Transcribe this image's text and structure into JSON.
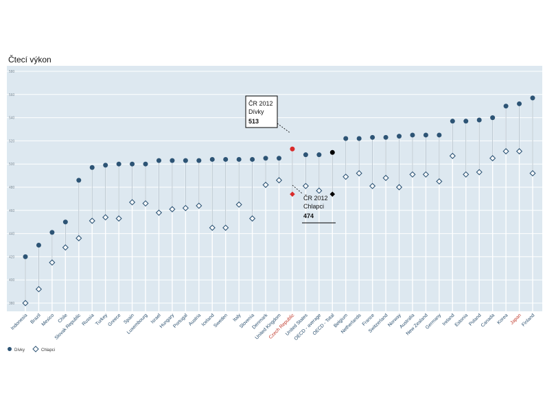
{
  "chart_data": {
    "type": "scatter",
    "title": "Čtecí výkon",
    "ylim": [
      380,
      580
    ],
    "yticks": [
      380,
      400,
      420,
      440,
      460,
      480,
      500,
      520,
      540,
      560,
      580
    ],
    "categories": [
      "Indonesia",
      "Brazil",
      "Mexico",
      "Chile",
      "Slovak Republic",
      "Russia",
      "Turkey",
      "Greece",
      "Spain",
      "Luxembourg",
      "Israel",
      "Hungary",
      "Portugal",
      "Austria",
      "Iceland",
      "Sweden",
      "Italy",
      "Slovenia",
      "Denmark",
      "United Kingdom",
      "Czech Republic",
      "United States",
      "OECD - average",
      "OECD - Total",
      "Belgium",
      "Netherlands",
      "France",
      "Switzerland",
      "Norway",
      "Australia",
      "New Zealand",
      "Germany",
      "Ireland",
      "Estonia",
      "Poland",
      "Canada",
      "Korea",
      "Japan",
      "Finland"
    ],
    "highlight_red": [
      "Czech Republic",
      "Japan"
    ],
    "highlight_black": [
      "OECD - Total"
    ],
    "series": [
      {
        "name": "Dívky",
        "marker": "circle",
        "values": [
          420,
          430,
          441,
          450,
          486,
          497,
          499,
          500,
          500,
          500,
          503,
          503,
          503,
          503,
          504,
          504,
          504,
          504,
          505,
          505,
          513,
          508,
          508,
          510,
          522,
          522,
          523,
          523,
          524,
          525,
          525,
          525,
          537,
          537,
          538,
          540,
          550,
          552,
          557
        ]
      },
      {
        "name": "Chlapci",
        "marker": "diamond",
        "values": [
          380,
          392,
          415,
          428,
          436,
          451,
          454,
          453,
          467,
          466,
          458,
          461,
          462,
          464,
          445,
          445,
          465,
          453,
          482,
          486,
          474,
          481,
          477,
          474,
          489,
          492,
          481,
          488,
          480,
          491,
          491,
          485,
          507,
          491,
          493,
          505,
          511,
          511,
          492
        ]
      }
    ],
    "annotations": [
      {
        "lines": [
          "ČR 2012",
          "Dívky"
        ],
        "value": "513"
      },
      {
        "lines": [
          "ČR 2012",
          "Chlapci"
        ],
        "value": "474"
      }
    ],
    "colors": {
      "panel": "#dde8f0",
      "grid": "#ffffff",
      "dot": "#2d5475",
      "stem": "#a8b8c4",
      "red": "#d92b2b",
      "black": "#000000",
      "red_label": "#c0392b",
      "label": "#2a4f6e"
    }
  }
}
